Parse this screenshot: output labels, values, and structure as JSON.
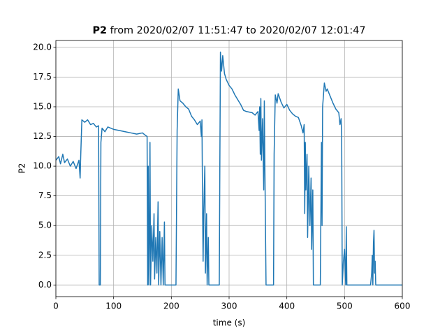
{
  "chart_data": {
    "type": "line",
    "title": [
      "P2",
      "from 2020/02/07 11:51:47 to 2020/02/07 12:01:47"
    ],
    "xlabel": "time (s)",
    "ylabel": "P2",
    "xlim": [
      0,
      600
    ],
    "xticks": [
      0,
      100,
      200,
      300,
      400,
      500,
      600
    ],
    "ylim": [
      -0.98,
      20.58
    ],
    "yticks": [
      {
        "value": 0,
        "label": "0.0"
      },
      {
        "value": 2.5,
        "label": "2.5"
      },
      {
        "value": 5,
        "label": "5.0"
      },
      {
        "value": 7.5,
        "label": "7.5"
      },
      {
        "value": 10,
        "label": "10.0"
      },
      {
        "value": 12.5,
        "label": "12.5"
      },
      {
        "value": 15,
        "label": "15.0"
      },
      {
        "value": 17.5,
        "label": "17.5"
      },
      {
        "value": 20,
        "label": "20.0"
      }
    ],
    "grid": true,
    "series": [
      {
        "color": "#1f77b4",
        "x": [
          0,
          5,
          8,
          12,
          15,
          20,
          25,
          30,
          35,
          40,
          42,
          43,
          45,
          50,
          55,
          60,
          65,
          70,
          74,
          75,
          77,
          78,
          80,
          85,
          90,
          100,
          110,
          120,
          130,
          140,
          150,
          155,
          158,
          159,
          160,
          161,
          162,
          163,
          164,
          166,
          168,
          170,
          171,
          173,
          175,
          177,
          178,
          180,
          182,
          184,
          186,
          188,
          189,
          205,
          208,
          210,
          212,
          215,
          220,
          225,
          230,
          235,
          240,
          245,
          250,
          252,
          253,
          254,
          255,
          256,
          258,
          259,
          261,
          262,
          264,
          265,
          270,
          283,
          284,
          285,
          287,
          289,
          292,
          295,
          300,
          305,
          310,
          320,
          325,
          330,
          340,
          345,
          350,
          352,
          353,
          354,
          355,
          356,
          358,
          360,
          361,
          362,
          364,
          375,
          377,
          378,
          380,
          383,
          385,
          390,
          395,
          400,
          405,
          410,
          415,
          420,
          425,
          428,
          430,
          431,
          432,
          433,
          435,
          436,
          438,
          440,
          442,
          443,
          445,
          446,
          448,
          458,
          460,
          461,
          462,
          465,
          468,
          470,
          475,
          480,
          485,
          490,
          492,
          494,
          495,
          496,
          498,
          500,
          502,
          503,
          504,
          545,
          547,
          548,
          549,
          550,
          551,
          552,
          553,
          554,
          600
        ],
        "values": [
          10.5,
          10.8,
          10.2,
          11,
          10.3,
          10.6,
          10,
          10.4,
          9.8,
          10.5,
          9.0,
          10.8,
          13.9,
          13.7,
          13.9,
          13.5,
          13.6,
          13.3,
          13.4,
          0,
          0,
          12,
          13.2,
          12.9,
          13.3,
          13.1,
          13.0,
          12.9,
          12.8,
          12.7,
          12.8,
          12.6,
          12.5,
          0,
          10,
          0,
          4,
          12,
          0,
          5,
          2,
          6,
          0.5,
          4,
          1,
          7,
          0,
          4.5,
          0,
          4,
          0,
          5.3,
          0,
          0,
          0,
          13,
          16.5,
          15.5,
          15.3,
          15.0,
          14.8,
          14.2,
          13.9,
          13.5,
          13.8,
          12.5,
          13.9,
          7,
          2,
          6,
          10,
          1,
          6,
          0,
          4,
          0,
          0,
          0,
          10,
          19.6,
          18,
          19.3,
          17.8,
          17.3,
          16.8,
          16.5,
          16,
          15.2,
          14.7,
          14.6,
          14.5,
          14.3,
          14.6,
          13,
          15,
          11,
          15.7,
          10.5,
          14,
          8,
          15.5,
          10,
          0,
          0,
          0,
          11,
          16,
          15.3,
          16.1,
          15.4,
          14.9,
          15.2,
          14.7,
          14.4,
          14.2,
          14.1,
          13.4,
          12.8,
          13.5,
          6,
          12,
          8,
          11,
          4,
          10,
          5,
          9,
          3,
          8,
          0,
          0,
          0,
          12,
          5,
          15,
          17,
          16.3,
          16.5,
          15.9,
          15.3,
          14.8,
          14.5,
          13.5,
          14,
          12.5,
          0,
          2,
          3,
          0,
          4.9,
          0,
          0,
          1,
          2.5,
          0,
          3.5,
          4.6,
          1,
          2,
          0,
          0
        ]
      }
    ]
  }
}
